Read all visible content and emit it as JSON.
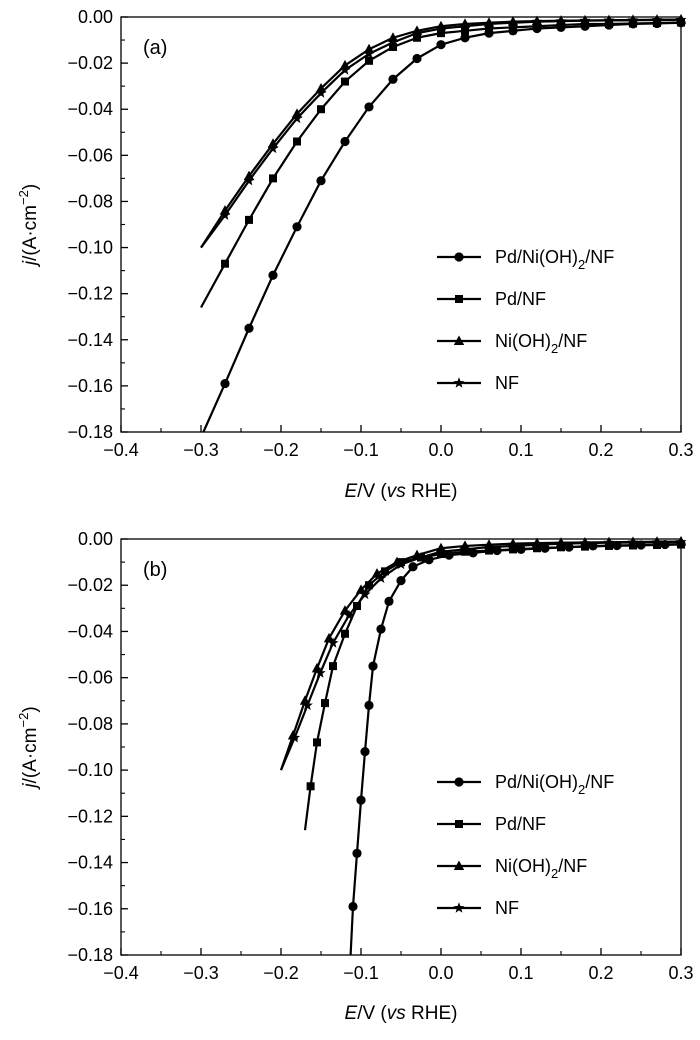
{
  "chart_data": [
    {
      "type": "line",
      "panel_label": "(a)",
      "xlabel": {
        "var": "E",
        "unit": "/V (",
        "vs": "vs",
        "ref": " RHE)"
      },
      "ylabel": {
        "var": "j",
        "unit": "/(A·cm",
        "sup": "−2",
        "close": ")"
      },
      "xlim": [
        -0.4,
        0.3
      ],
      "ylim": [
        -0.18,
        0.0
      ],
      "xticks": [
        -0.4,
        -0.3,
        -0.2,
        -0.1,
        0.0,
        0.1,
        0.2,
        0.3
      ],
      "xtick_labels": [
        "−0.4",
        "−0.3",
        "−0.2",
        "−0.1",
        "0.0",
        "0.1",
        "0.2",
        "0.3"
      ],
      "yticks": [
        0.0,
        -0.02,
        -0.04,
        -0.06,
        -0.08,
        -0.1,
        -0.12,
        -0.14,
        -0.16,
        -0.18
      ],
      "ytick_labels": [
        "0.00",
        "−0.02",
        "−0.04",
        "−0.06",
        "−0.08",
        "−0.10",
        "−0.12",
        "−0.14",
        "−0.16",
        "−0.18"
      ],
      "grid": false,
      "legend_position": "right-middle",
      "series": [
        {
          "name": "Pd/Ni(OH)2/NF",
          "label_main": "Pd/Ni(OH)",
          "label_sub": "2",
          "label_tail": "/NF",
          "marker": "circle",
          "x": [
            -0.297,
            -0.27,
            -0.24,
            -0.21,
            -0.18,
            -0.15,
            -0.12,
            -0.09,
            -0.06,
            -0.03,
            0.0,
            0.03,
            0.06,
            0.09,
            0.12,
            0.15,
            0.18,
            0.21,
            0.24,
            0.27,
            0.3
          ],
          "y": [
            -0.18,
            -0.159,
            -0.135,
            -0.112,
            -0.091,
            -0.071,
            -0.054,
            -0.039,
            -0.027,
            -0.018,
            -0.012,
            -0.009,
            -0.007,
            -0.006,
            -0.005,
            -0.0045,
            -0.004,
            -0.0035,
            -0.003,
            -0.0028,
            -0.0025
          ]
        },
        {
          "name": "Pd/NF",
          "label_main": "Pd/NF",
          "label_sub": "",
          "label_tail": "",
          "marker": "square",
          "x": [
            -0.3,
            -0.27,
            -0.24,
            -0.21,
            -0.18,
            -0.15,
            -0.12,
            -0.09,
            -0.06,
            -0.03,
            0.0,
            0.03,
            0.06,
            0.09,
            0.12,
            0.15,
            0.18,
            0.21,
            0.24,
            0.27,
            0.3
          ],
          "y": [
            -0.126,
            -0.107,
            -0.088,
            -0.07,
            -0.054,
            -0.04,
            -0.028,
            -0.019,
            -0.013,
            -0.009,
            -0.007,
            -0.006,
            -0.005,
            -0.0045,
            -0.004,
            -0.0035,
            -0.003,
            -0.003,
            -0.0028,
            -0.0026,
            -0.0024
          ]
        },
        {
          "name": "Ni(OH)2/NF",
          "label_main": "Ni(OH)",
          "label_sub": "2",
          "label_tail": "/NF",
          "marker": "triangle",
          "x": [
            -0.3,
            -0.27,
            -0.24,
            -0.21,
            -0.18,
            -0.15,
            -0.12,
            -0.09,
            -0.06,
            -0.03,
            0.0,
            0.03,
            0.06,
            0.09,
            0.12,
            0.15,
            0.18,
            0.21,
            0.24,
            0.27,
            0.3
          ],
          "y": [
            -0.1,
            -0.084,
            -0.069,
            -0.055,
            -0.042,
            -0.031,
            -0.021,
            -0.014,
            -0.009,
            -0.006,
            -0.004,
            -0.003,
            -0.0025,
            -0.002,
            -0.0018,
            -0.0016,
            -0.0015,
            -0.0014,
            -0.0013,
            -0.0012,
            -0.0011
          ]
        },
        {
          "name": "NF",
          "label_main": "NF",
          "label_sub": "",
          "label_tail": "",
          "marker": "star",
          "x": [
            -0.3,
            -0.27,
            -0.24,
            -0.21,
            -0.18,
            -0.15,
            -0.12,
            -0.09,
            -0.06,
            -0.03,
            0.0,
            0.03,
            0.06,
            0.09,
            0.12,
            0.15,
            0.18,
            0.21,
            0.24,
            0.27,
            0.3
          ],
          "y": [
            -0.1,
            -0.086,
            -0.071,
            -0.057,
            -0.044,
            -0.033,
            -0.023,
            -0.016,
            -0.011,
            -0.007,
            -0.005,
            -0.004,
            -0.003,
            -0.0025,
            -0.002,
            -0.0018,
            -0.0016,
            -0.0015,
            -0.0014,
            -0.0013,
            -0.0012
          ]
        }
      ]
    },
    {
      "type": "line",
      "panel_label": "(b)",
      "xlabel": {
        "var": "E",
        "unit": "/V (",
        "vs": "vs",
        "ref": " RHE)"
      },
      "ylabel": {
        "var": "j",
        "unit": "/(A·cm",
        "sup": "−2",
        "close": ")"
      },
      "xlim": [
        -0.4,
        0.3
      ],
      "ylim": [
        -0.18,
        0.0
      ],
      "xticks": [
        -0.4,
        -0.3,
        -0.2,
        -0.1,
        0.0,
        0.1,
        0.2,
        0.3
      ],
      "xtick_labels": [
        "−0.4",
        "−0.3",
        "−0.2",
        "−0.1",
        "0.0",
        "0.1",
        "0.2",
        "0.3"
      ],
      "yticks": [
        0.0,
        -0.02,
        -0.04,
        -0.06,
        -0.08,
        -0.1,
        -0.12,
        -0.14,
        -0.16,
        -0.18
      ],
      "ytick_labels": [
        "0.00",
        "−0.02",
        "−0.04",
        "−0.06",
        "−0.08",
        "−0.10",
        "−0.12",
        "−0.14",
        "−0.16",
        "−0.18"
      ],
      "grid": false,
      "legend_position": "bottom-right",
      "series": [
        {
          "name": "Pd/Ni(OH)2/NF",
          "label_main": "Pd/Ni(OH)",
          "label_sub": "2",
          "label_tail": "/NF",
          "marker": "circle",
          "x": [
            -0.113,
            -0.11,
            -0.105,
            -0.1,
            -0.095,
            -0.09,
            -0.085,
            -0.075,
            -0.065,
            -0.05,
            -0.035,
            -0.015,
            0.01,
            0.04,
            0.07,
            0.1,
            0.13,
            0.16,
            0.19,
            0.22,
            0.25,
            0.28,
            0.3
          ],
          "y": [
            -0.18,
            -0.159,
            -0.136,
            -0.113,
            -0.092,
            -0.072,
            -0.055,
            -0.039,
            -0.027,
            -0.018,
            -0.012,
            -0.009,
            -0.007,
            -0.006,
            -0.005,
            -0.0045,
            -0.004,
            -0.0035,
            -0.003,
            -0.0028,
            -0.0026,
            -0.0024,
            -0.0022
          ]
        },
        {
          "name": "Pd/NF",
          "label_main": "Pd/NF",
          "label_sub": "",
          "label_tail": "",
          "marker": "square",
          "x": [
            -0.17,
            -0.163,
            -0.155,
            -0.145,
            -0.135,
            -0.12,
            -0.105,
            -0.09,
            -0.07,
            -0.05,
            -0.025,
            0.0,
            0.03,
            0.06,
            0.09,
            0.12,
            0.15,
            0.18,
            0.21,
            0.24,
            0.27,
            0.3
          ],
          "y": [
            -0.126,
            -0.107,
            -0.088,
            -0.071,
            -0.055,
            -0.041,
            -0.029,
            -0.02,
            -0.014,
            -0.01,
            -0.008,
            -0.0065,
            -0.0055,
            -0.005,
            -0.0045,
            -0.004,
            -0.0036,
            -0.0033,
            -0.003,
            -0.0028,
            -0.0026,
            -0.0024
          ]
        },
        {
          "name": "Ni(OH)2/NF",
          "label_main": "Ni(OH)",
          "label_sub": "2",
          "label_tail": "/NF",
          "marker": "triangle",
          "x": [
            -0.2,
            -0.185,
            -0.17,
            -0.155,
            -0.14,
            -0.12,
            -0.1,
            -0.08,
            -0.055,
            -0.03,
            0.0,
            0.03,
            0.06,
            0.09,
            0.12,
            0.15,
            0.18,
            0.21,
            0.24,
            0.27,
            0.3
          ],
          "y": [
            -0.1,
            -0.085,
            -0.07,
            -0.056,
            -0.043,
            -0.031,
            -0.022,
            -0.015,
            -0.01,
            -0.007,
            -0.004,
            -0.003,
            -0.0025,
            -0.002,
            -0.0018,
            -0.0016,
            -0.0015,
            -0.0014,
            -0.0013,
            -0.0012,
            -0.0011
          ]
        },
        {
          "name": "NF",
          "label_main": "NF",
          "label_sub": "",
          "label_tail": "",
          "marker": "star",
          "x": [
            -0.2,
            -0.183,
            -0.167,
            -0.151,
            -0.135,
            -0.115,
            -0.095,
            -0.075,
            -0.05,
            -0.025,
            0.0,
            0.03,
            0.06,
            0.09,
            0.12,
            0.15,
            0.18,
            0.21,
            0.24,
            0.27,
            0.3
          ],
          "y": [
            -0.1,
            -0.086,
            -0.072,
            -0.058,
            -0.045,
            -0.033,
            -0.024,
            -0.017,
            -0.011,
            -0.008,
            -0.0055,
            -0.0045,
            -0.0035,
            -0.003,
            -0.0025,
            -0.002,
            -0.0018,
            -0.0016,
            -0.0015,
            -0.0014,
            -0.0013
          ]
        }
      ]
    }
  ]
}
